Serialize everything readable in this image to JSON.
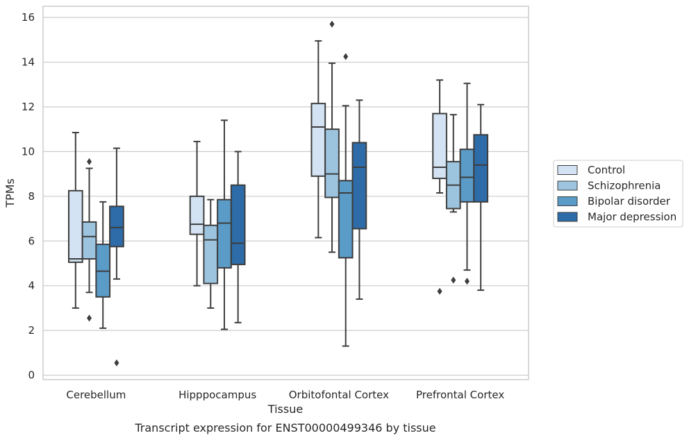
{
  "chart_data": {
    "type": "box",
    "caption": "Transcript expression for ENST00000499346 by tissue",
    "xlabel": "Tissue",
    "ylabel": "TPMs",
    "ylim": [
      -0.2,
      16.5
    ],
    "yticks": [
      0,
      2,
      4,
      6,
      8,
      10,
      12,
      14,
      16
    ],
    "grid": true,
    "legend_position": "right",
    "categories": [
      "Cerebellum",
      "Hipppocampus",
      "Orbitofontal Cortex",
      "Prefrontal Cortex"
    ],
    "series": [
      {
        "name": "Control",
        "color": "#d3e3f3",
        "boxes": [
          {
            "whislo": 3.0,
            "q1": 5.05,
            "med": 5.2,
            "q3": 8.25,
            "whishi": 10.85,
            "fliers": []
          },
          {
            "whislo": 4.0,
            "q1": 6.3,
            "med": 6.75,
            "q3": 8.0,
            "whishi": 10.45,
            "fliers": []
          },
          {
            "whislo": 6.15,
            "q1": 8.9,
            "med": 11.1,
            "q3": 12.15,
            "whishi": 14.95,
            "fliers": []
          },
          {
            "whislo": 8.15,
            "q1": 8.8,
            "med": 9.3,
            "q3": 11.7,
            "whishi": 13.2,
            "fliers": [
              3.75
            ]
          }
        ]
      },
      {
        "name": "Schizophrenia",
        "color": "#9cc4de",
        "boxes": [
          {
            "whislo": 3.7,
            "q1": 5.2,
            "med": 6.2,
            "q3": 6.85,
            "whishi": 9.25,
            "fliers": [
              2.55,
              9.55
            ]
          },
          {
            "whislo": 3.0,
            "q1": 4.1,
            "med": 6.05,
            "q3": 6.7,
            "whishi": 7.85,
            "fliers": []
          },
          {
            "whislo": 5.5,
            "q1": 7.95,
            "med": 9.0,
            "q3": 11.0,
            "whishi": 13.95,
            "fliers": [
              15.7
            ]
          },
          {
            "whislo": 7.3,
            "q1": 7.45,
            "med": 8.5,
            "q3": 9.55,
            "whishi": 11.65,
            "fliers": [
              4.25
            ]
          }
        ]
      },
      {
        "name": "Bipolar disorder",
        "color": "#5a9bc8",
        "boxes": [
          {
            "whislo": 2.1,
            "q1": 3.5,
            "med": 4.65,
            "q3": 5.85,
            "whishi": 7.75,
            "fliers": []
          },
          {
            "whislo": 2.05,
            "q1": 4.8,
            "med": 6.8,
            "q3": 7.85,
            "whishi": 11.4,
            "fliers": []
          },
          {
            "whislo": 1.3,
            "q1": 5.25,
            "med": 8.15,
            "q3": 8.7,
            "whishi": 12.05,
            "fliers": [
              14.25
            ]
          },
          {
            "whislo": 4.7,
            "q1": 7.75,
            "med": 8.85,
            "q3": 10.1,
            "whishi": 13.05,
            "fliers": [
              4.2
            ]
          }
        ]
      },
      {
        "name": "Major depression",
        "color": "#2d6ca8",
        "boxes": [
          {
            "whislo": 4.3,
            "q1": 5.75,
            "med": 6.6,
            "q3": 7.55,
            "whishi": 10.15,
            "fliers": [
              0.55
            ]
          },
          {
            "whislo": 2.35,
            "q1": 4.95,
            "med": 5.9,
            "q3": 8.5,
            "whishi": 10.0,
            "fliers": []
          },
          {
            "whislo": 3.4,
            "q1": 6.55,
            "med": 9.3,
            "q3": 10.4,
            "whishi": 12.3,
            "fliers": []
          },
          {
            "whislo": 3.8,
            "q1": 7.75,
            "med": 9.4,
            "q3": 10.75,
            "whishi": 12.1,
            "fliers": []
          }
        ]
      }
    ]
  }
}
